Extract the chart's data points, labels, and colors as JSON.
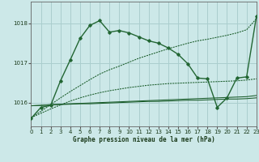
{
  "title": "Graphe pression niveau de la mer (hPa)",
  "bg_color": "#cce8e8",
  "grid_color": "#aacece",
  "line_color_dark": "#1a5c2a",
  "line_color_medium": "#226633",
  "xlim": [
    0,
    23
  ],
  "ylim": [
    1015.4,
    1018.55
  ],
  "yticks": [
    1016,
    1017,
    1018
  ],
  "xticks": [
    0,
    1,
    2,
    3,
    4,
    5,
    6,
    7,
    8,
    9,
    10,
    11,
    12,
    13,
    14,
    15,
    16,
    17,
    18,
    19,
    20,
    21,
    22,
    23
  ],
  "series_main": [
    1015.6,
    1015.88,
    1015.93,
    1016.55,
    1017.08,
    1017.62,
    1017.95,
    1018.07,
    1017.78,
    1017.82,
    1017.76,
    1017.66,
    1017.56,
    1017.5,
    1017.38,
    1017.22,
    1016.98,
    1016.62,
    1016.6,
    1015.88,
    1016.12,
    1016.62,
    1016.65,
    1018.18
  ],
  "series_diag1": [
    1015.62,
    1015.78,
    1015.95,
    1016.12,
    1016.28,
    1016.43,
    1016.58,
    1016.72,
    1016.83,
    1016.92,
    1017.02,
    1017.12,
    1017.2,
    1017.28,
    1017.36,
    1017.43,
    1017.5,
    1017.56,
    1017.6,
    1017.65,
    1017.7,
    1017.76,
    1017.84,
    1018.12
  ],
  "series_diag2": [
    1015.62,
    1015.73,
    1015.84,
    1015.94,
    1016.04,
    1016.12,
    1016.19,
    1016.25,
    1016.3,
    1016.34,
    1016.38,
    1016.41,
    1016.44,
    1016.46,
    1016.48,
    1016.49,
    1016.5,
    1016.51,
    1016.52,
    1016.53,
    1016.54,
    1016.55,
    1016.57,
    1016.6
  ],
  "series_flat1": [
    1015.92,
    1015.93,
    1015.95,
    1015.96,
    1015.97,
    1015.98,
    1015.99,
    1016.0,
    1016.01,
    1016.02,
    1016.03,
    1016.04,
    1016.05,
    1016.06,
    1016.07,
    1016.08,
    1016.09,
    1016.1,
    1016.11,
    1016.12,
    1016.13,
    1016.14,
    1016.15,
    1016.18
  ],
  "series_flat2": [
    1015.92,
    1015.93,
    1015.94,
    1015.95,
    1015.96,
    1015.97,
    1015.97,
    1015.98,
    1015.99,
    1016.0,
    1016.01,
    1016.02,
    1016.03,
    1016.03,
    1016.04,
    1016.05,
    1016.06,
    1016.06,
    1016.07,
    1016.08,
    1016.09,
    1016.09,
    1016.1,
    1016.12
  ]
}
